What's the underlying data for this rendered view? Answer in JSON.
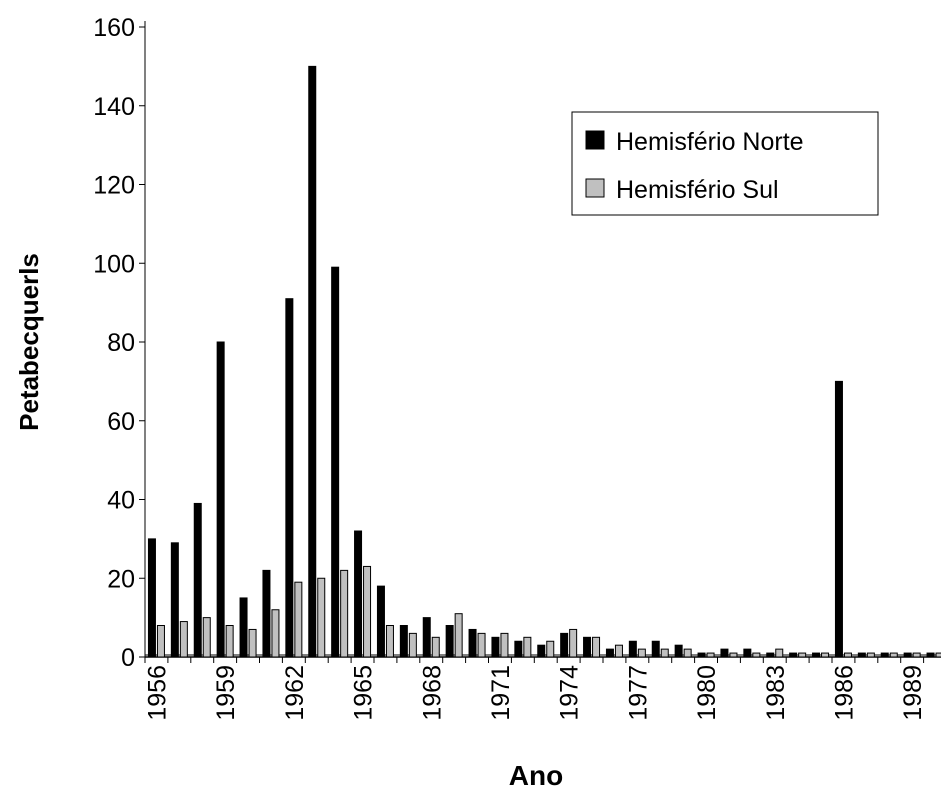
{
  "chart_data": {
    "type": "bar",
    "x_label": "Ano",
    "y_label": "Petabecquerls",
    "categories": [
      "1956",
      null,
      null,
      "1959",
      null,
      null,
      "1962",
      null,
      null,
      "1965",
      null,
      null,
      "1968",
      null,
      null,
      "1971",
      null,
      null,
      "1974",
      null,
      null,
      "1977",
      null,
      null,
      "1980",
      null,
      null,
      "1983",
      null,
      null,
      "1986",
      null,
      null,
      "1989",
      null
    ],
    "series": [
      {
        "name": "Hemisfério Norte",
        "color": "#000000",
        "values": [
          30,
          29,
          39,
          80,
          15,
          22,
          91,
          150,
          99,
          32,
          18,
          8,
          10,
          8,
          7,
          5,
          4,
          3,
          6,
          5,
          2,
          4,
          4,
          3,
          1,
          2,
          2,
          1,
          1,
          1,
          70,
          1,
          1,
          1,
          1
        ]
      },
      {
        "name": "Hemisfério Sul",
        "color": "#c0c0c0",
        "values": [
          8,
          9,
          10,
          8,
          7,
          12,
          19,
          20,
          22,
          23,
          8,
          6,
          5,
          11,
          6,
          6,
          5,
          4,
          7,
          5,
          3,
          2,
          2,
          2,
          1,
          1,
          1,
          2,
          1,
          1,
          1,
          1,
          1,
          1,
          1
        ]
      }
    ],
    "ylim": [
      0,
      160
    ],
    "yticks": [
      0,
      20,
      40,
      60,
      80,
      100,
      120,
      140,
      160
    ],
    "grid": false,
    "legend": "upper right"
  }
}
